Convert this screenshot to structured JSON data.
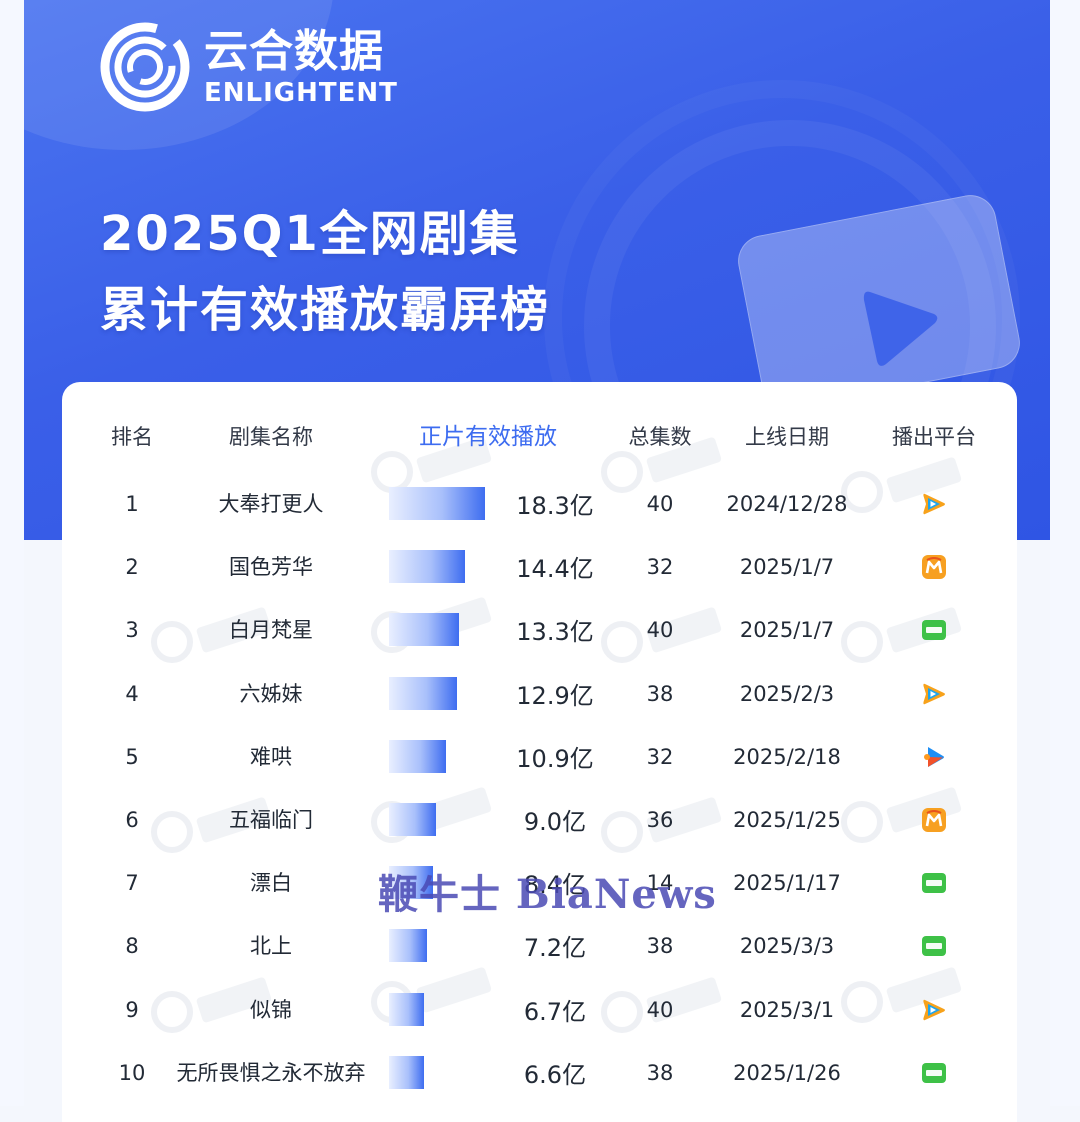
{
  "brand": {
    "name_cn": "云合数据",
    "name_en": "ENLIGHTENT"
  },
  "title": {
    "line1": "2025Q1全网剧集",
    "line2": "累计有效播放霸屏榜"
  },
  "headers": {
    "rank": "排名",
    "name": "剧集名称",
    "plays": "正片有效播放",
    "episodes": "总集数",
    "date": "上线日期",
    "platform": "播出平台"
  },
  "watermark": "鞭牛士 BiaNews",
  "colors": {
    "brand_blue": "#3a5fe8",
    "accent": "#3d6cf0",
    "bar_end": "#3e6df0"
  },
  "platform_icons": {
    "tencent": "tencent-video-icon",
    "mango": "mango-tv-icon",
    "iqiyi": "iqiyi-icon",
    "youku": "youku-icon"
  },
  "chart_data": {
    "type": "bar",
    "categories": [
      "大奉打更人",
      "国色芳华",
      "白月梵星",
      "六姊妹",
      "难哄",
      "五福临门",
      "漂白",
      "北上",
      "似锦",
      "无所畏惧之永不放弃"
    ],
    "values": [
      18.3,
      14.4,
      13.3,
      12.9,
      10.9,
      9.0,
      8.4,
      7.2,
      6.7,
      6.6
    ],
    "value_unit": "亿",
    "rows": [
      {
        "rank": "1",
        "name": "大奉打更人",
        "value": 18.3,
        "value_label": "18.3亿",
        "episodes": "40",
        "date": "2024/12/28",
        "platform": "tencent"
      },
      {
        "rank": "2",
        "name": "国色芳华",
        "value": 14.4,
        "value_label": "14.4亿",
        "episodes": "32",
        "date": "2025/1/7",
        "platform": "mango"
      },
      {
        "rank": "3",
        "name": "白月梵星",
        "value": 13.3,
        "value_label": "13.3亿",
        "episodes": "40",
        "date": "2025/1/7",
        "platform": "iqiyi"
      },
      {
        "rank": "4",
        "name": "六姊妹",
        "value": 12.9,
        "value_label": "12.9亿",
        "episodes": "38",
        "date": "2025/2/3",
        "platform": "tencent"
      },
      {
        "rank": "5",
        "name": "难哄",
        "value": 10.9,
        "value_label": "10.9亿",
        "episodes": "32",
        "date": "2025/2/18",
        "platform": "youku"
      },
      {
        "rank": "6",
        "name": "五福临门",
        "value": 9.0,
        "value_label": "9.0亿",
        "episodes": "36",
        "date": "2025/1/25",
        "platform": "mango"
      },
      {
        "rank": "7",
        "name": "漂白",
        "value": 8.4,
        "value_label": "8.4亿",
        "episodes": "14",
        "date": "2025/1/17",
        "platform": "iqiyi"
      },
      {
        "rank": "8",
        "name": "北上",
        "value": 7.2,
        "value_label": "7.2亿",
        "episodes": "38",
        "date": "2025/3/3",
        "platform": "iqiyi"
      },
      {
        "rank": "9",
        "name": "似锦",
        "value": 6.7,
        "value_label": "6.7亿",
        "episodes": "40",
        "date": "2025/3/1",
        "platform": "tencent"
      },
      {
        "rank": "10",
        "name": "无所畏惧之永不放弃",
        "value": 6.6,
        "value_label": "6.6亿",
        "episodes": "38",
        "date": "2025/1/26",
        "platform": "iqiyi"
      }
    ]
  }
}
